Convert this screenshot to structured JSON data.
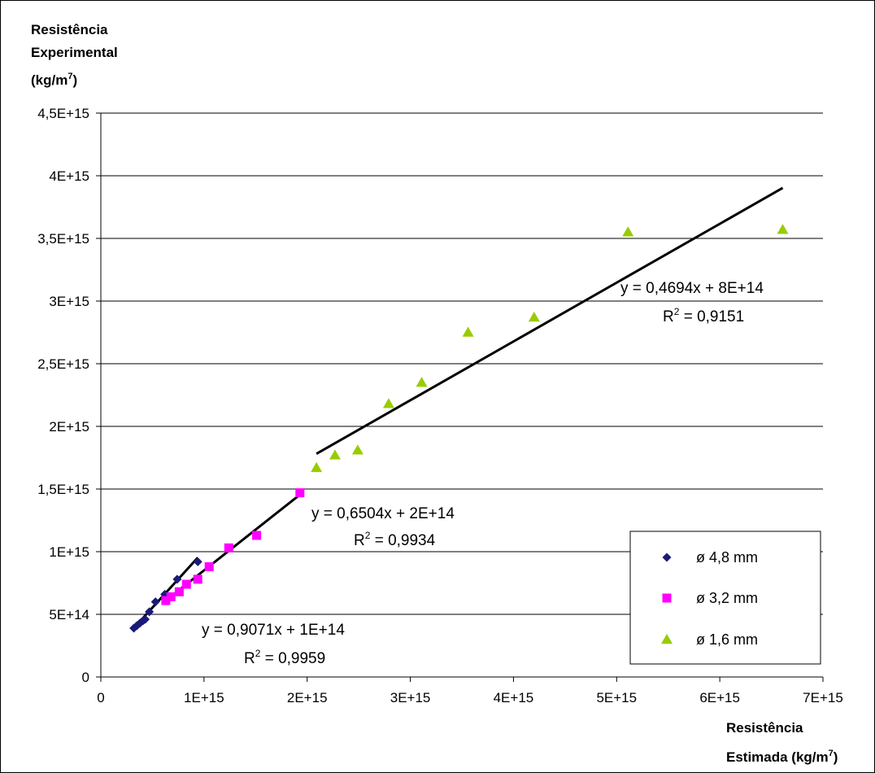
{
  "chart_data": {
    "type": "scatter",
    "ylabel": {
      "line1": "Resistência",
      "line2": "Experimental",
      "line3_base": "(kg/m",
      "line3_sup": "7",
      "line3_end": ")"
    },
    "xlabel": {
      "line1": "Resistência",
      "line2_base": "Estimada (kg/m",
      "line2_sup": "7",
      "line2_end": ")"
    },
    "x_ticks": [
      {
        "v": 0,
        "label": "0"
      },
      {
        "v": 1000000000000000.0,
        "label": "1E+15"
      },
      {
        "v": 2000000000000000.0,
        "label": "2E+15"
      },
      {
        "v": 3000000000000000.0,
        "label": "3E+15"
      },
      {
        "v": 4000000000000000.0,
        "label": "4E+15"
      },
      {
        "v": 5000000000000000.0,
        "label": "5E+15"
      },
      {
        "v": 6000000000000000.0,
        "label": "6E+15"
      },
      {
        "v": 7000000000000000.0,
        "label": "7E+15"
      }
    ],
    "y_ticks": [
      {
        "v": 0,
        "label": "0"
      },
      {
        "v": 500000000000000.0,
        "label": "5E+14"
      },
      {
        "v": 1000000000000000.0,
        "label": "1E+15"
      },
      {
        "v": 1500000000000000.0,
        "label": "1,5E+15"
      },
      {
        "v": 2000000000000000.0,
        "label": "2E+15"
      },
      {
        "v": 2500000000000000.0,
        "label": "2,5E+15"
      },
      {
        "v": 3000000000000000.0,
        "label": "3E+15"
      },
      {
        "v": 3500000000000000.0,
        "label": "3,5E+15"
      },
      {
        "v": 4000000000000000.0,
        "label": "4E+15"
      },
      {
        "v": 4500000000000000.0,
        "label": "4,5E+15"
      }
    ],
    "xlim": [
      0,
      7000000000000000.0
    ],
    "ylim": [
      0,
      4500000000000000.0
    ],
    "grid": "horizontal",
    "legend_position": "bottom-right",
    "series": [
      {
        "name": "ø 4,8 mm",
        "marker": "diamond",
        "color": "#1a1a7a",
        "points": [
          [
            320000000000000.0,
            390000000000000.0
          ],
          [
            350000000000000.0,
            410000000000000.0
          ],
          [
            380000000000000.0,
            430000000000000.0
          ],
          [
            410000000000000.0,
            450000000000000.0
          ],
          [
            430000000000000.0,
            460000000000000.0
          ],
          [
            470000000000000.0,
            520000000000000.0
          ],
          [
            530000000000000.0,
            600000000000000.0
          ],
          [
            620000000000000.0,
            660000000000000.0
          ],
          [
            740000000000000.0,
            780000000000000.0
          ],
          [
            940000000000000.0,
            920000000000000.0
          ]
        ],
        "trendline": {
          "x": [
            320000000000000.0,
            940000000000000.0
          ],
          "slope": 0.9071,
          "intercept": 100000000000000.0,
          "equation": "y = 0,9071x + 1E+14",
          "r2_base": "R",
          "r2_sup": "2",
          "r2_value": " = 0,9959"
        }
      },
      {
        "name": "ø 3,2 mm",
        "marker": "square",
        "color": "#ff00ff",
        "points": [
          [
            630000000000000.0,
            610000000000000.0
          ],
          [
            680000000000000.0,
            640000000000000.0
          ],
          [
            760000000000000.0,
            680000000000000.0
          ],
          [
            830000000000000.0,
            740000000000000.0
          ],
          [
            940000000000000.0,
            780000000000000.0
          ],
          [
            1050000000000000.0,
            880000000000000.0
          ],
          [
            1240000000000000.0,
            1030000000000000.0
          ],
          [
            1510000000000000.0,
            1130000000000000.0
          ],
          [
            1930000000000000.0,
            1470000000000000.0
          ]
        ],
        "trendline": {
          "x": [
            630000000000000.0,
            1930000000000000.0
          ],
          "slope": 0.6504,
          "intercept": 200000000000000.0,
          "equation": "y = 0,6504x + 2E+14",
          "r2_base": "R",
          "r2_sup": "2",
          "r2_value": " = 0,9934"
        }
      },
      {
        "name": "ø 1,6 mm",
        "marker": "triangle",
        "color": "#99cc00",
        "points": [
          [
            2090000000000000.0,
            1670000000000000.0
          ],
          [
            2270000000000000.0,
            1770000000000000.0
          ],
          [
            2490000000000000.0,
            1810000000000000.0
          ],
          [
            2790000000000000.0,
            2180000000000000.0
          ],
          [
            3110000000000000.0,
            2350000000000000.0
          ],
          [
            3560000000000000.0,
            2750000000000000.0
          ],
          [
            4200000000000000.0,
            2870000000000000.0
          ],
          [
            5110000000000000.0,
            3550000000000000.0
          ],
          [
            6610000000000000.0,
            3570000000000000.0
          ]
        ],
        "trendline": {
          "x": [
            2090000000000000.0,
            6610000000000000.0
          ],
          "slope": 0.4694,
          "intercept": 800000000000000.0,
          "equation": "y = 0,4694x + 8E+14",
          "r2_base": "R",
          "r2_sup": "2",
          "r2_value": " = 0,9151"
        }
      }
    ]
  }
}
